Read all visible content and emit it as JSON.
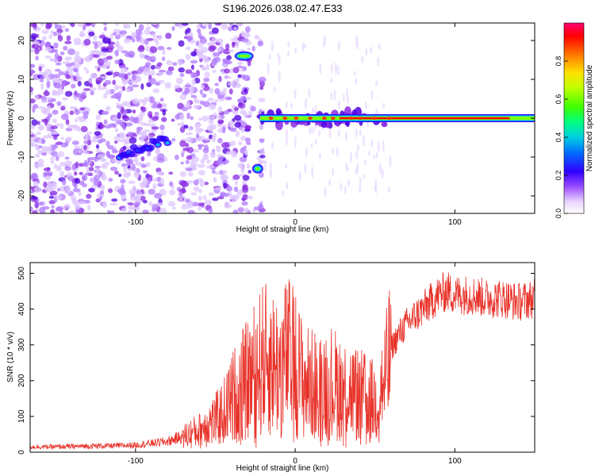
{
  "figure": {
    "title": "S196.2026.038.02.47.E33"
  },
  "chart_data": [
    {
      "type": "heatmap",
      "xlabel": "Height of straight line (km)",
      "ylabel": "Frequency (Hz)",
      "xlim": [
        -166,
        150
      ],
      "ylim": [
        -24.5,
        24.5
      ],
      "xticks": [
        -100,
        0,
        100
      ],
      "yticks": [
        -20,
        -10,
        0,
        10,
        20
      ],
      "colorbar": {
        "label": "Normalized spectral amplitude",
        "range": [
          0,
          1
        ],
        "ticks": [
          0.0,
          0.2,
          0.4,
          0.6,
          0.8
        ],
        "tick_labels": [
          "0.0",
          "0.2",
          "0.4",
          "0.6",
          "0.8"
        ],
        "colors": [
          "#ffffff",
          "#e9d6ff",
          "#8a2be2",
          "#3000ff",
          "#0080ff",
          "#00e0e0",
          "#00ff60",
          "#80ff00",
          "#ffff00",
          "#ff8000",
          "#ff0000",
          "#ff0060"
        ]
      },
      "features": [
        {
          "name": "carrier-line",
          "x_range": [
            -22,
            150
          ],
          "frequency": 0,
          "amplitude": 0.95
        },
        {
          "name": "upper-blob",
          "x_range": [
            -36,
            -28
          ],
          "frequency": 16,
          "amplitude": 0.7
        },
        {
          "name": "lower-blob",
          "x_range": [
            -25,
            -22
          ],
          "frequency": -13,
          "amplitude": 0.5
        },
        {
          "name": "diagonal-streak",
          "x_range": [
            -110,
            -80
          ],
          "frequency": [
            -9.5,
            -5.5
          ],
          "amplitude": 0.5
        }
      ]
    },
    {
      "type": "line",
      "xlabel": "Height of straight line (km)",
      "ylabel": "SNR (10 * v/v)",
      "xlim": [
        -166,
        150
      ],
      "ylim": [
        0,
        530
      ],
      "xticks": [
        -100,
        0,
        100
      ],
      "yticks": [
        0,
        100,
        200,
        300,
        400,
        500
      ],
      "color": "#e8332a",
      "series": [
        {
          "name": "SNR",
          "x": [
            -166,
            -150,
            -130,
            -110,
            -100,
            -90,
            -80,
            -70,
            -60,
            -55,
            -50,
            -45,
            -40,
            -35,
            -30,
            -25,
            -20,
            -15,
            -10,
            -5,
            0,
            5,
            10,
            15,
            20,
            25,
            30,
            35,
            40,
            45,
            50,
            55,
            58,
            60,
            65,
            70,
            75,
            80,
            85,
            90,
            95,
            100,
            110,
            120,
            130,
            140,
            150
          ],
          "y": [
            15,
            15,
            17,
            18,
            20,
            25,
            30,
            45,
            60,
            80,
            90,
            110,
            150,
            180,
            200,
            230,
            260,
            250,
            240,
            270,
            250,
            200,
            190,
            180,
            200,
            190,
            180,
            170,
            160,
            150,
            140,
            190,
            230,
            290,
            330,
            360,
            380,
            400,
            420,
            440,
            450,
            440,
            440,
            430,
            430,
            420,
            430
          ]
        }
      ]
    }
  ]
}
